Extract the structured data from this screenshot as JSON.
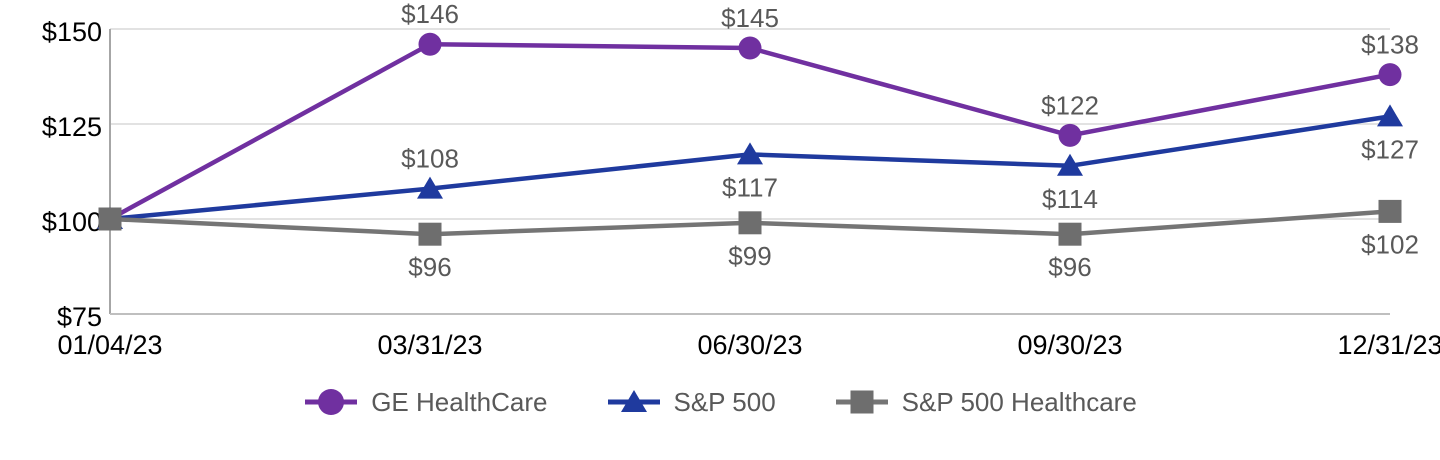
{
  "chart_data": {
    "type": "line",
    "x_categories": [
      "01/04/23",
      "03/31/23",
      "06/30/23",
      "09/30/23",
      "12/31/23"
    ],
    "ylim": [
      75,
      150
    ],
    "grid": true,
    "legend_position": "bottom",
    "y_ticks": [
      {
        "label": "$150",
        "value": 150
      },
      {
        "label": "$125",
        "value": 125
      },
      {
        "label": "$100",
        "value": 100
      },
      {
        "label": "$75",
        "value": 75
      }
    ],
    "series": [
      {
        "name": "GE HealthCare",
        "marker": "circle",
        "color": "#7030A0",
        "marker_color": "#7030A0",
        "values": [
          100,
          146,
          145,
          122,
          138
        ],
        "labels": [
          "",
          "$146",
          "$145",
          "$122",
          "$138"
        ],
        "label_side": [
          "",
          "above",
          "above",
          "above",
          "above"
        ]
      },
      {
        "name": "S&P 500",
        "marker": "triangle",
        "color": "#1F3A9E",
        "marker_color": "#1F3A9E",
        "values": [
          100,
          108,
          117,
          114,
          127
        ],
        "labels": [
          "",
          "$108",
          "$117",
          "$114",
          "$127"
        ],
        "label_side": [
          "",
          "above",
          "below",
          "below",
          "below"
        ]
      },
      {
        "name": "S&P 500 Healthcare",
        "marker": "square",
        "color": "#757575",
        "marker_color": "#6E6E6E",
        "values": [
          100,
          96,
          99,
          96,
          102
        ],
        "labels": [
          "",
          "$96",
          "$99",
          "$96",
          "$102"
        ],
        "label_side": [
          "",
          "below",
          "below",
          "below",
          "below"
        ]
      }
    ]
  },
  "colors": {
    "gridline": "#D9D9D9",
    "y_axis": "#A6A6A6",
    "x_axis": "#BFBFBF",
    "tick_text": "#000000",
    "data_label_text": "#595959",
    "legend_text": "#595959"
  }
}
